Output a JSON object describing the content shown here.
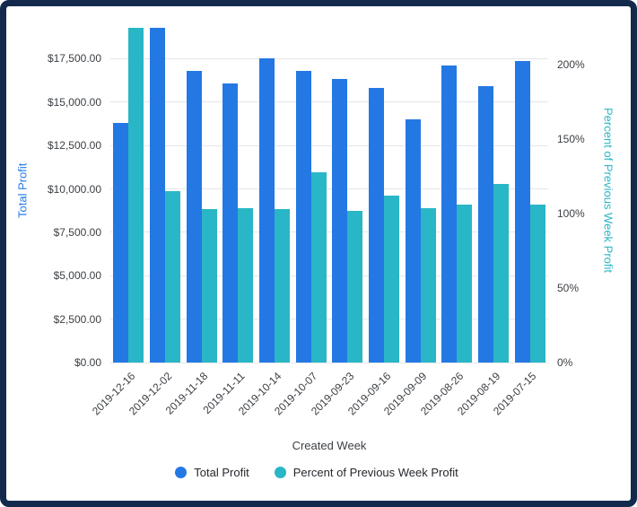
{
  "chart_data": {
    "type": "bar",
    "title": "",
    "xlabel": "Created Week",
    "ylabel_left": "Total Profit",
    "ylabel_right": "Percent of Previous Week Profit",
    "categories": [
      "2019-12-16",
      "2019-12-02",
      "2019-11-18",
      "2019-11-11",
      "2019-10-14",
      "2019-10-07",
      "2019-09-23",
      "2019-09-16",
      "2019-09-09",
      "2019-08-26",
      "2019-08-19",
      "2019-07-15"
    ],
    "series": [
      {
        "name": "Total Profit",
        "axis": "left",
        "color": "#2478e4",
        "values": [
          13800,
          19300,
          16800,
          16100,
          17500,
          16800,
          16350,
          15800,
          14000,
          17100,
          15900,
          17350
        ]
      },
      {
        "name": "Percent of Previous Week Profit",
        "axis": "right",
        "color": "#29b6c6",
        "values": [
          225,
          115,
          103,
          104,
          103,
          128,
          102,
          112,
          104,
          106,
          120,
          106
        ]
      }
    ],
    "y_left_ticks": [
      0,
      2500,
      5000,
      7500,
      10000,
      12500,
      15000,
      17500
    ],
    "y_left_tick_labels": [
      "$0.00",
      "$2,500.00",
      "$5,000.00",
      "$7,500.00",
      "$10,000.00",
      "$12,500.00",
      "$15,000.00",
      "$17,500.00"
    ],
    "y_right_ticks": [
      0,
      50,
      100,
      150,
      200
    ],
    "y_right_tick_labels": [
      "0%",
      "50%",
      "100%",
      "150%",
      "200%"
    ],
    "ylim_left": [
      0,
      19800
    ],
    "ylim_right": [
      0,
      231
    ],
    "grid": true,
    "legend_position": "bottom"
  },
  "colors": {
    "frame_border": "#132a4c",
    "gridline": "#e4e6e8",
    "tick_text": "#3b3f44",
    "axis_title_left": "#2478e4",
    "axis_title_right": "#29b6c6"
  }
}
